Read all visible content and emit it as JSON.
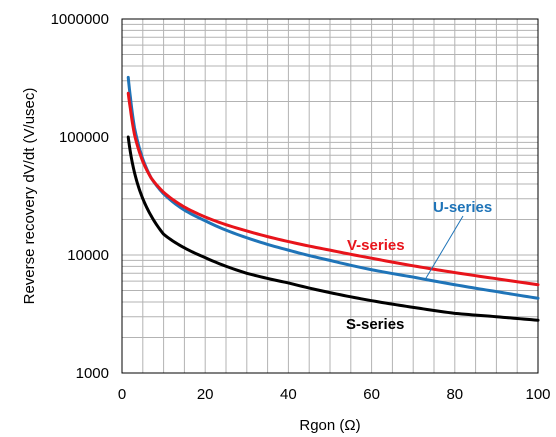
{
  "chart_data": {
    "type": "line",
    "title": "",
    "xlabel": "Rgon (Ω)",
    "ylabel": "Reverse recovery dV/dt (V/usec)",
    "xlim": [
      0,
      100
    ],
    "ylim": [
      1000,
      1000000
    ],
    "y_scale": "log",
    "grid": true,
    "x_ticks": [
      0,
      20,
      40,
      60,
      80,
      100
    ],
    "x_tick_labels": [
      "0",
      "20",
      "40",
      "60",
      "80",
      "100"
    ],
    "y_ticks": [
      1000,
      10000,
      100000,
      1000000
    ],
    "y_tick_labels": [
      "1000",
      "10000",
      "100000",
      "1000000"
    ],
    "series": [
      {
        "name": "S-series",
        "color": "#000000",
        "x": [
          1.5,
          2,
          3,
          5,
          7,
          10,
          15,
          20,
          30,
          40,
          50,
          60,
          70,
          80,
          90,
          100
        ],
        "y": [
          100000,
          75000,
          50000,
          30000,
          21500,
          15000,
          11500,
          9500,
          7000,
          5800,
          4800,
          4100,
          3600,
          3200,
          3000,
          2800
        ]
      },
      {
        "name": "U-series",
        "color": "#1f74b8",
        "x": [
          1.5,
          2,
          3,
          5,
          7,
          10,
          15,
          20,
          30,
          40,
          50,
          60,
          70,
          80,
          90,
          100
        ],
        "y": [
          320000,
          220000,
          120000,
          65000,
          45000,
          33000,
          24000,
          19500,
          14000,
          11000,
          9000,
          7500,
          6500,
          5600,
          4900,
          4300
        ]
      },
      {
        "name": "V-series",
        "color": "#e8141b",
        "x": [
          1.5,
          2,
          3,
          5,
          7,
          10,
          15,
          20,
          30,
          40,
          50,
          60,
          70,
          80,
          90,
          100
        ],
        "y": [
          235000,
          175000,
          105000,
          62000,
          45000,
          34000,
          25500,
          21000,
          16000,
          13000,
          11000,
          9400,
          8100,
          7100,
          6300,
          5600
        ]
      }
    ]
  }
}
